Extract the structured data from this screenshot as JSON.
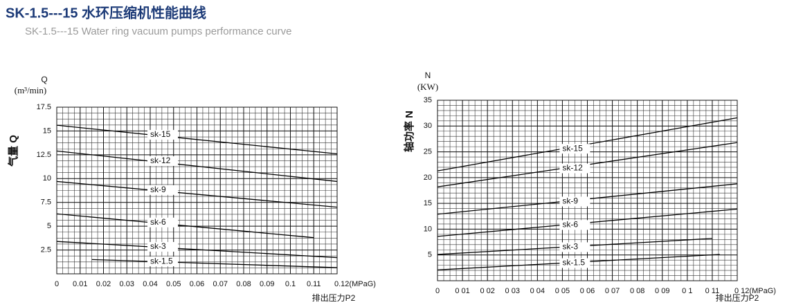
{
  "header": {
    "title": "SK-1.5---15 水环压缩机性能曲线",
    "subtitle": "SK-1.5---15  Water ring vacuum pumps performance curve"
  },
  "chart_data": [
    {
      "type": "line",
      "y_symbol": "Q",
      "y_unit": "(m³/min)",
      "y_label": "气量 Q",
      "x_label": "排出压力P2",
      "xlim": [
        0,
        0.12
      ],
      "xticks": [
        0,
        0.01,
        0.02,
        0.03,
        0.04,
        0.05,
        0.06,
        0.07,
        0.08,
        0.09,
        0.1,
        0.11,
        {
          "value": 0.12,
          "label": "0.12(MPaG)"
        }
      ],
      "ylim": [
        0,
        17.5
      ],
      "yticks": [
        2.5,
        5,
        7.5,
        10,
        12.5,
        15,
        17.5
      ],
      "grid": true,
      "series": [
        {
          "name": "sk-15",
          "color": "#000000",
          "x": [
            0,
            0.12
          ],
          "values": [
            15.6,
            12.6
          ]
        },
        {
          "name": "sk-12",
          "color": "#000000",
          "x": [
            0,
            0.12
          ],
          "values": [
            12.9,
            9.7
          ]
        },
        {
          "name": "sk-9",
          "color": "#000000",
          "x": [
            0,
            0.12
          ],
          "values": [
            9.7,
            7.0
          ]
        },
        {
          "name": "sk-6",
          "color": "#000000",
          "x": [
            0,
            0.11
          ],
          "values": [
            6.3,
            3.8
          ]
        },
        {
          "name": "sk-3",
          "color": "#000000",
          "x": [
            0,
            0.12
          ],
          "values": [
            3.4,
            1.7
          ]
        },
        {
          "name": "sk-1.5",
          "color": "#000000",
          "x": [
            0.015,
            0.12
          ],
          "values": [
            1.5,
            0.65
          ]
        }
      ]
    },
    {
      "type": "line",
      "y_symbol": "N",
      "y_unit": "(KW)",
      "y_label": "轴功率 N",
      "x_label": "排出压力P2",
      "xlim": [
        0,
        0.12
      ],
      "xticks": [
        0,
        {
          "value": 0.01,
          "label": "0 01"
        },
        {
          "value": 0.02,
          "label": "0 02"
        },
        {
          "value": 0.03,
          "label": "0 03"
        },
        {
          "value": 0.04,
          "label": "0 04"
        },
        {
          "value": 0.05,
          "label": "0 05"
        },
        {
          "value": 0.06,
          "label": "0 06"
        },
        {
          "value": 0.07,
          "label": "0 07"
        },
        {
          "value": 0.08,
          "label": "0 08"
        },
        {
          "value": 0.09,
          "label": "0 09"
        },
        {
          "value": 0.1,
          "label": "0 1"
        },
        {
          "value": 0.11,
          "label": "0 11"
        },
        {
          "value": 0.12,
          "label": "0 12(MPaG)"
        }
      ],
      "ylim": [
        0,
        35
      ],
      "yticks": [
        5,
        10,
        15,
        20,
        25,
        30,
        35
      ],
      "grid": true,
      "series": [
        {
          "name": "sk-15",
          "color": "#000000",
          "x": [
            0,
            0.12
          ],
          "values": [
            21.3,
            31.6
          ]
        },
        {
          "name": "sk-12",
          "color": "#000000",
          "x": [
            0,
            0.12
          ],
          "values": [
            18.2,
            26.8
          ]
        },
        {
          "name": "sk-9",
          "color": "#000000",
          "x": [
            0,
            0.12
          ],
          "values": [
            12.9,
            18.8
          ]
        },
        {
          "name": "sk-6",
          "color": "#000000",
          "x": [
            0,
            0.12
          ],
          "values": [
            8.6,
            13.9
          ]
        },
        {
          "name": "sk-3",
          "color": "#000000",
          "x": [
            0,
            0.11
          ],
          "values": [
            5.1,
            8.2
          ]
        },
        {
          "name": "sk-1.5",
          "color": "#000000",
          "x": [
            0,
            0.113
          ],
          "values": [
            2.1,
            5.1
          ]
        }
      ]
    }
  ]
}
